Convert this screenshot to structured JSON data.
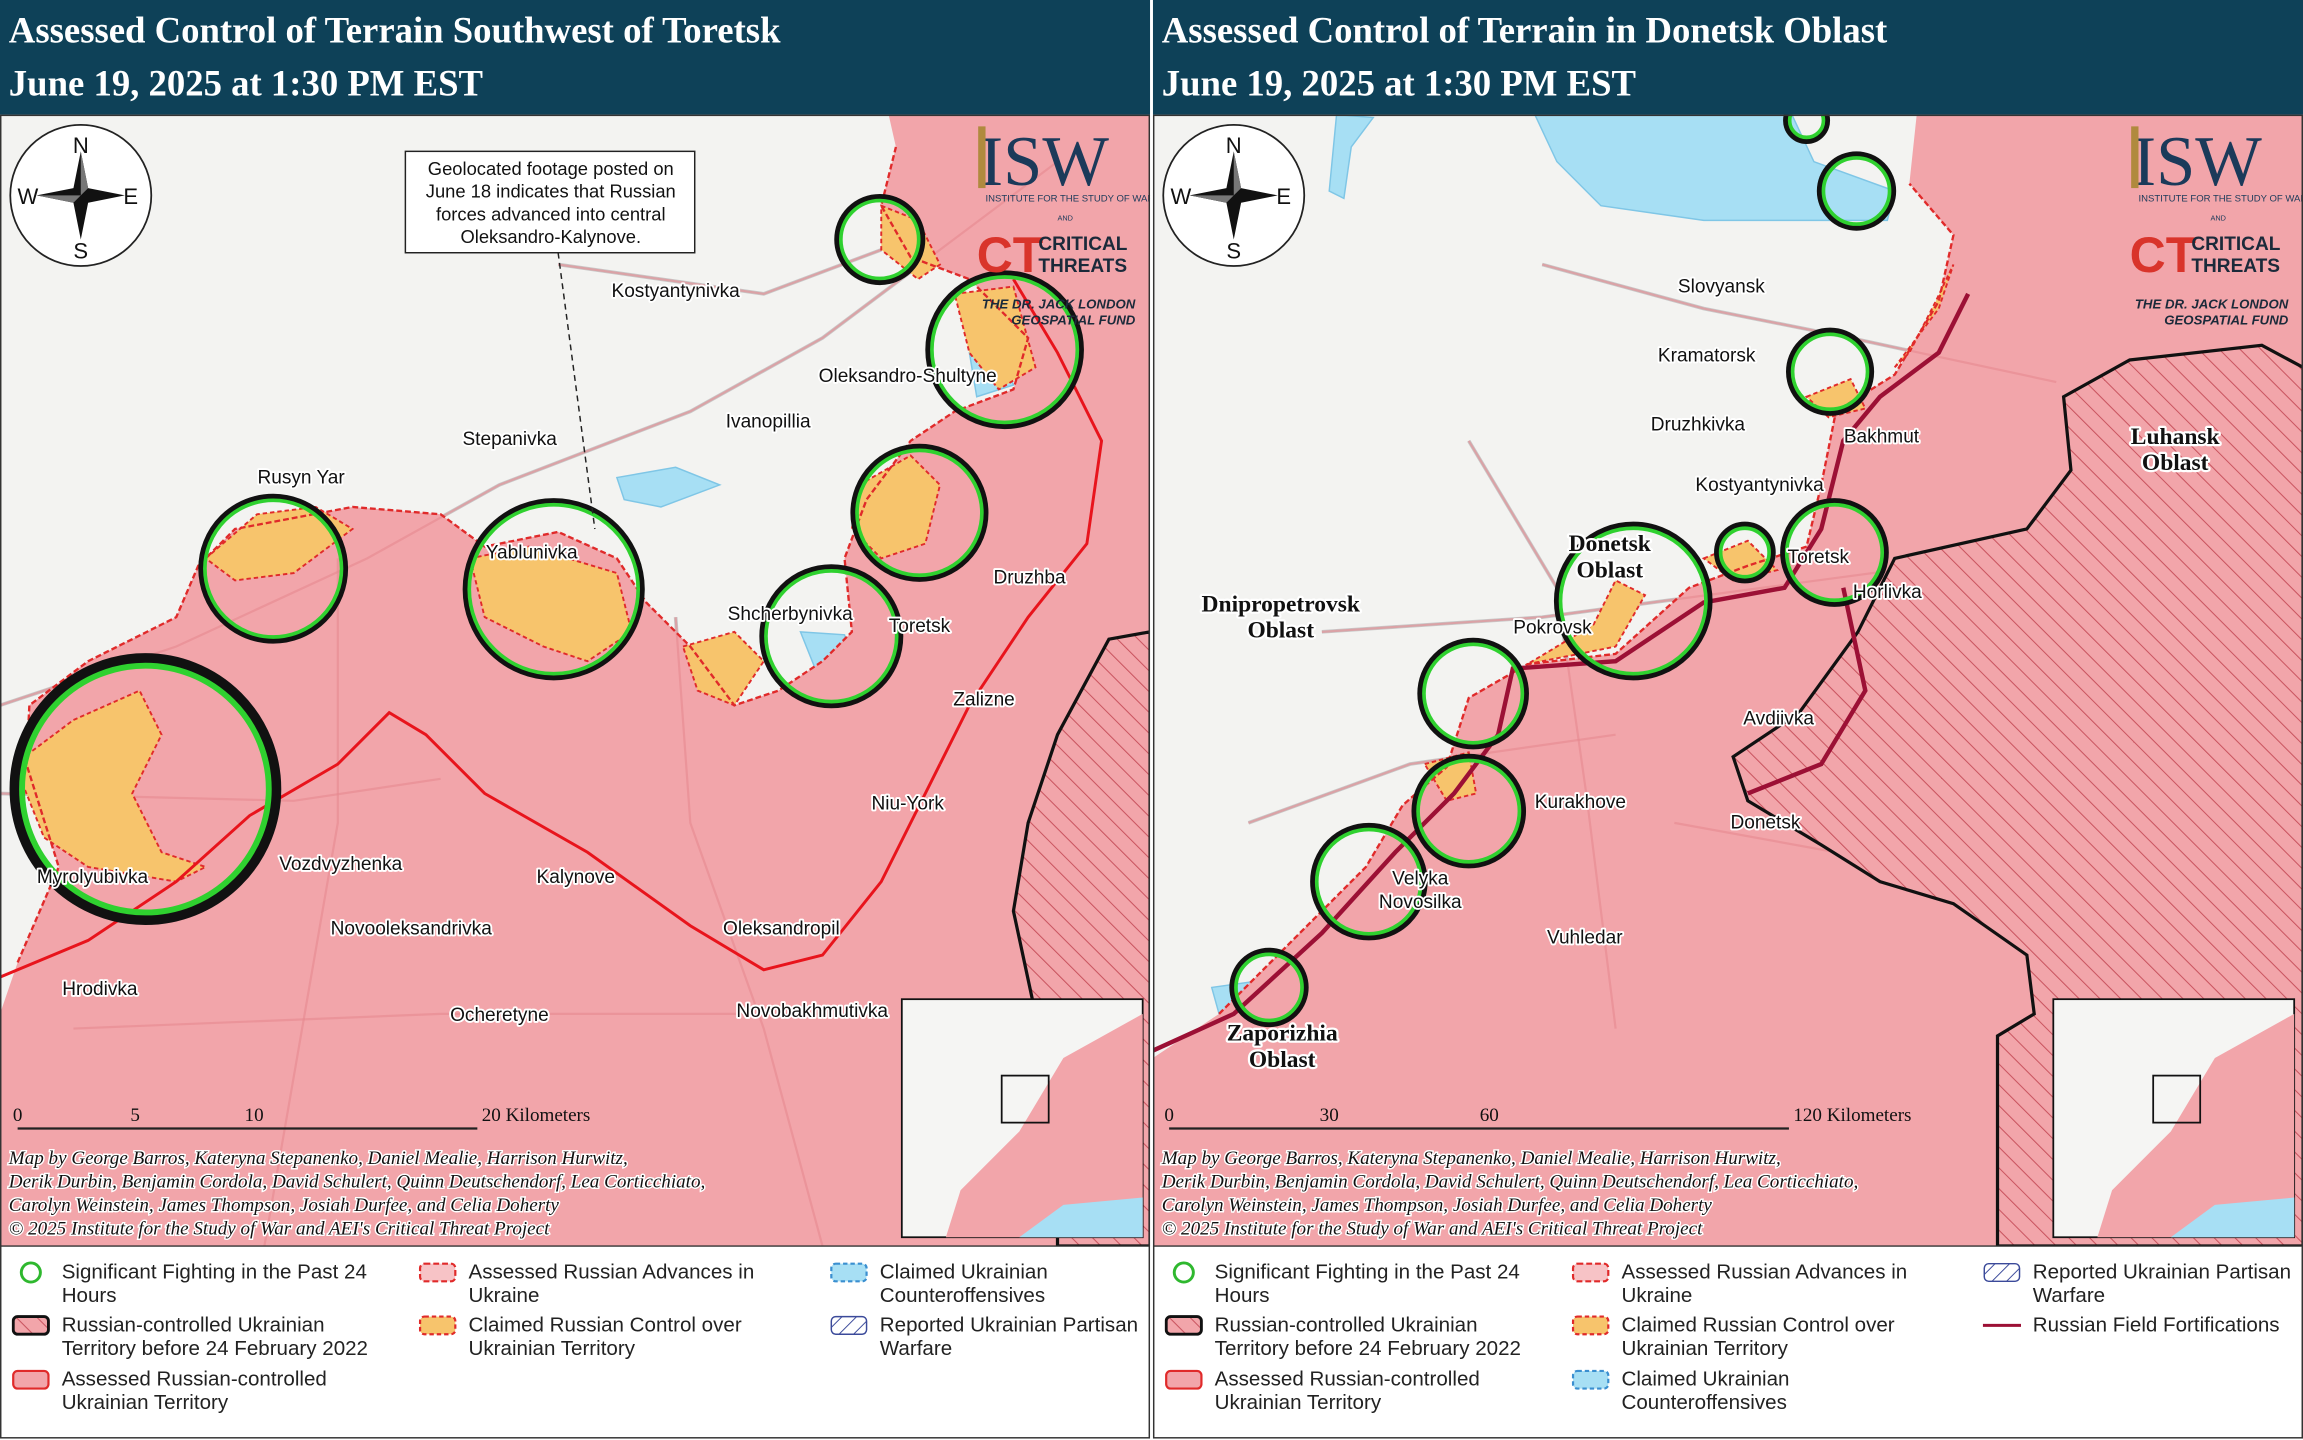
{
  "panels": [
    {
      "title": "Assessed Control of Terrain Southwest of Toretsk",
      "date": "June 19, 2025 at 1:30 PM EST",
      "callout": [
        "Geolocated footage posted on",
        "June 18 indicates that Russian",
        "forces advanced into central",
        "Oleksandro-Kalynove."
      ],
      "places": [
        [
          "Kostyantynivka"
        ],
        [
          "Oleksandro-Shultyne"
        ],
        [
          "Ivanopillia"
        ],
        [
          "Stepanivka"
        ],
        [
          "Rusyn Yar"
        ],
        [
          "Yablunivka"
        ],
        [
          "Shcherbynivka"
        ],
        [
          "Toretsk"
        ],
        [
          "Druzhba"
        ],
        [
          "Zalizne"
        ],
        [
          "Niu-York"
        ],
        [
          "Vozdvyzhenka"
        ],
        [
          "Kalynove"
        ],
        [
          "Myrolyubivka"
        ],
        [
          "Novooleksandrivka"
        ],
        [
          "Oleksandropil"
        ],
        [
          "Hrodivka"
        ],
        [
          "Ocheretyne"
        ],
        [
          "Novobakhmutivka"
        ]
      ],
      "regions": [],
      "scale": [
        "0",
        "5",
        "10",
        "20 Kilometers"
      ],
      "credits": [
        "Map by George Barros, Kateryna Stepanenko, Daniel Mealie, Harrison Hurwitz,",
        "Derik Durbin, Benjamin Cordola, David Schulert, Quinn Deutschendorf, Lea Corticchiato,",
        "Carolyn Weinstein, James Thompson, Josiah Durfee, and Celia Doherty",
        "© 2025 Institute for the Study of War and AEI's Critical Threat Project"
      ],
      "legend": [
        "Significant Fighting in the Past 24 Hours",
        "Russian-controlled Ukrainian Territory before 24 February 2022",
        "Assessed Russian-controlled Ukrainian Territory",
        "Assessed Russian Advances in Ukraine",
        "Claimed Russian Control over Ukrainian Territory",
        "Claimed Ukrainian Counteroffensives",
        "Reported Ukrainian Partisan Warfare"
      ]
    },
    {
      "title": "Assessed Control of Terrain in Donetsk Oblast",
      "date": "June 19, 2025 at 1:30 PM EST",
      "callout": [],
      "places": [
        [
          "Slovyansk"
        ],
        [
          "Kramatorsk"
        ],
        [
          "Druzhkivka"
        ],
        [
          "Bakhmut"
        ],
        [
          "Kostyantynivka"
        ],
        [
          "Toretsk"
        ],
        [
          "Horlivka"
        ],
        [
          "Pokrovsk"
        ],
        [
          "Avdiivka"
        ],
        [
          "Kurakhove"
        ],
        [
          "Donetsk"
        ],
        [
          "Velyka",
          "Novosilka"
        ],
        [
          "Vuhledar"
        ]
      ],
      "regions": [
        [
          "Luhansk",
          "Oblast"
        ],
        [
          "Donetsk",
          "Oblast"
        ],
        [
          "Dnipropetrovsk",
          "Oblast"
        ],
        [
          "Zaporizhia",
          "Oblast"
        ]
      ],
      "scale": [
        "0",
        "30",
        "60",
        "120 Kilometers"
      ],
      "credits": [
        "Map by George Barros, Kateryna Stepanenko, Daniel Mealie, Harrison Hurwitz,",
        "Derik Durbin, Benjamin Cordola, David Schulert, Quinn Deutschendorf, Lea Corticchiato,",
        "Carolyn Weinstein, James Thompson, Josiah Durfee, and Celia Doherty",
        "© 2025 Institute for the Study of War and AEI's Critical Threat Project"
      ],
      "legend": [
        "Significant Fighting in the Past 24 Hours",
        "Russian-controlled Ukrainian Territory before 24 February 2022",
        "Assessed Russian-controlled Ukrainian Territory",
        "Assessed Russian Advances in Ukraine",
        "Claimed Russian Control over Ukrainian Territory",
        "Claimed Ukrainian Counteroffensives",
        "Reported Ukrainian Partisan Warfare",
        "Russian Field Fortifications"
      ]
    }
  ],
  "compass": {
    "n": "N",
    "e": "E",
    "s": "S",
    "w": "W"
  },
  "logo": {
    "isw": "ISW",
    "isw_sub": "INSTITUTE FOR THE STUDY OF WAR",
    "and": "AND",
    "ct": "CT",
    "critical": "CRITICAL",
    "threats": "THREATS",
    "fund1": "THE DR. JACK LONDON",
    "fund2": "GEOSPATIAL FUND"
  }
}
